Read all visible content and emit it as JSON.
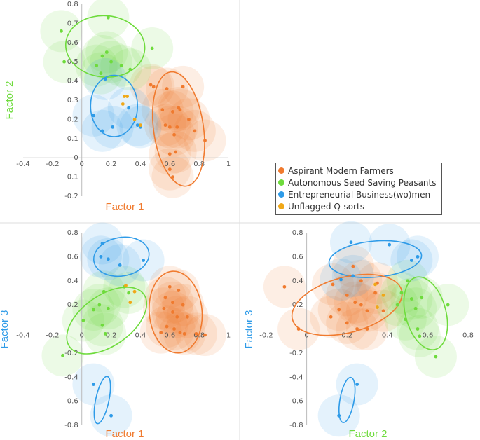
{
  "colors": {
    "orange": "#F07A2E",
    "green": "#6EDB3C",
    "blue": "#2E9BE8",
    "yellow": "#F0A818",
    "orange_axis": "#F07A2E",
    "green_axis": "#6EDB3C",
    "blue_axis": "#2E9BE8",
    "grid": "#DDDDDD",
    "axis": "#BBBBBB"
  },
  "legend": {
    "items": [
      {
        "label": "Aspirant Modern Farmers",
        "color": "#F07A2E"
      },
      {
        "label": "Autonomous Seed Saving Peasants",
        "color": "#6EDB3C"
      },
      {
        "label": "Entrepreneurial Business(wo)men",
        "color": "#2E9BE8"
      },
      {
        "label": "Unflagged Q-sorts",
        "color": "#F0A818"
      }
    ]
  },
  "chart_data": [
    {
      "type": "scatter",
      "id": "f1f2",
      "xlabel": "Factor 1",
      "ylabel": "Factor 2",
      "xlabel_color": "#F07A2E",
      "ylabel_color": "#6EDB3C",
      "xlim": [
        -0.4,
        1.0
      ],
      "ylim": [
        -0.2,
        0.8
      ],
      "xticks": [
        "-0.4",
        "-0.2",
        "0",
        "0.2",
        "0.4",
        "0.6",
        "0.8",
        "1"
      ],
      "yticks": [
        "-0.2",
        "-0.1",
        "0",
        "0.1",
        "0.2",
        "0.3",
        "0.4",
        "0.5",
        "0.6",
        "0.7",
        "0.8"
      ],
      "series": [
        {
          "name": "Aspirant Modern Farmers",
          "color": "#F07A2E",
          "points": [
            [
              0.47,
              0.38
            ],
            [
              0.49,
              0.37
            ],
            [
              0.58,
              0.36
            ],
            [
              0.69,
              0.37
            ],
            [
              0.55,
              0.25
            ],
            [
              0.62,
              0.24
            ],
            [
              0.66,
              0.26
            ],
            [
              0.67,
              0.25
            ],
            [
              0.73,
              0.2
            ],
            [
              0.57,
              0.17
            ],
            [
              0.6,
              0.16
            ],
            [
              0.63,
              0.12
            ],
            [
              0.77,
              0.14
            ],
            [
              0.84,
              0.09
            ],
            [
              0.6,
              0.02
            ],
            [
              0.64,
              0.03
            ],
            [
              0.6,
              -0.06
            ],
            [
              0.62,
              -0.1
            ],
            [
              0.65,
              0.16
            ]
          ]
        },
        {
          "name": "Autonomous Seed Saving Peasants",
          "color": "#6EDB3C",
          "points": [
            [
              -0.14,
              0.66
            ],
            [
              0.18,
              0.73
            ],
            [
              -0.12,
              0.5
            ],
            [
              0.17,
              0.55
            ],
            [
              0.14,
              0.53
            ],
            [
              0.2,
              0.5
            ],
            [
              0.27,
              0.48
            ],
            [
              0.1,
              0.48
            ],
            [
              0.13,
              0.44
            ],
            [
              0.33,
              0.46
            ],
            [
              0.48,
              0.57
            ]
          ]
        },
        {
          "name": "Entrepreneurial Business(wo)men",
          "color": "#2E9BE8",
          "points": [
            [
              0.16,
              0.41
            ],
            [
              0.08,
              0.22
            ],
            [
              0.21,
              0.16
            ],
            [
              0.14,
              0.14
            ],
            [
              0.32,
              0.26
            ],
            [
              0.4,
              0.16
            ],
            [
              0.38,
              0.17
            ]
          ]
        },
        {
          "name": "Unflagged Q-sorts",
          "color": "#F0A818",
          "points": [
            [
              0.29,
              0.32
            ],
            [
              0.31,
              0.32
            ],
            [
              0.28,
              0.28
            ],
            [
              0.36,
              0.2
            ],
            [
              0.4,
              0.17
            ]
          ]
        }
      ],
      "ellipses": [
        {
          "color": "#6EDB3C",
          "cx": 0.16,
          "cy": 0.58,
          "rx": 0.27,
          "ry": 0.16,
          "angle": 5
        },
        {
          "color": "#F07A2E",
          "cx": 0.66,
          "cy": 0.15,
          "rx": 0.17,
          "ry": 0.3,
          "angle": -8
        },
        {
          "color": "#2E9BE8",
          "cx": 0.22,
          "cy": 0.27,
          "rx": 0.16,
          "ry": 0.16,
          "angle": 0
        }
      ]
    },
    {
      "type": "scatter",
      "id": "f1f3",
      "xlabel": "Factor 1",
      "ylabel": "Factor 3",
      "xlabel_color": "#F07A2E",
      "ylabel_color": "#2E9BE8",
      "xlim": [
        -0.4,
        1.0
      ],
      "ylim": [
        -0.8,
        0.8
      ],
      "xticks": [
        "-0.4",
        "-0.2",
        "0",
        "0.2",
        "0.4",
        "0.6",
        "0.8",
        "1"
      ],
      "yticks": [
        "-0.8",
        "-0.6",
        "-0.4",
        "-0.2",
        "0",
        "0.2",
        "0.4",
        "0.6",
        "0.8"
      ],
      "series": [
        {
          "name": "Aspirant Modern Farmers",
          "color": "#F07A2E",
          "points": [
            [
              0.6,
              0.35
            ],
            [
              0.66,
              0.32
            ],
            [
              0.57,
              0.26
            ],
            [
              0.62,
              0.22
            ],
            [
              0.69,
              0.2
            ],
            [
              0.56,
              0.17
            ],
            [
              0.62,
              0.14
            ],
            [
              0.65,
              0.1
            ],
            [
              0.72,
              0.1
            ],
            [
              0.58,
              0.02
            ],
            [
              0.63,
              0.0
            ],
            [
              0.67,
              -0.03
            ],
            [
              0.7,
              -0.04
            ],
            [
              0.78,
              -0.04
            ],
            [
              0.84,
              -0.05
            ],
            [
              0.54,
              -0.03
            ]
          ]
        },
        {
          "name": "Autonomous Seed Saving Peasants",
          "color": "#6EDB3C",
          "points": [
            [
              0.15,
              0.31
            ],
            [
              0.29,
              0.35
            ],
            [
              0.12,
              0.2
            ],
            [
              0.18,
              0.17
            ],
            [
              0.08,
              0.16
            ],
            [
              0.32,
              0.3
            ],
            [
              0.01,
              0.07
            ],
            [
              0.14,
              0.03
            ],
            [
              -0.13,
              -0.22
            ],
            [
              0.16,
              -0.04
            ]
          ]
        },
        {
          "name": "Entrepreneurial Business(wo)men",
          "color": "#2E9BE8",
          "points": [
            [
              0.14,
              0.71
            ],
            [
              0.13,
              0.6
            ],
            [
              0.18,
              0.58
            ],
            [
              0.26,
              0.53
            ],
            [
              0.42,
              0.57
            ],
            [
              0.08,
              -0.46
            ],
            [
              0.2,
              -0.72
            ]
          ]
        },
        {
          "name": "Unflagged Q-sorts",
          "color": "#F0A818",
          "points": [
            [
              0.3,
              0.36
            ],
            [
              0.33,
              0.22
            ],
            [
              0.36,
              0.31
            ]
          ]
        }
      ],
      "ellipses": [
        {
          "color": "#2E9BE8",
          "cx": 0.27,
          "cy": 0.6,
          "rx": 0.19,
          "ry": 0.16,
          "angle": -10
        },
        {
          "color": "#6EDB3C",
          "cx": 0.17,
          "cy": 0.07,
          "rx": 0.31,
          "ry": 0.21,
          "angle": -35
        },
        {
          "color": "#F07A2E",
          "cx": 0.64,
          "cy": 0.14,
          "rx": 0.18,
          "ry": 0.34,
          "angle": -5
        },
        {
          "color": "#2E9BE8",
          "cx": 0.14,
          "cy": -0.59,
          "rx": 0.045,
          "ry": 0.2,
          "angle": 12
        }
      ]
    },
    {
      "type": "scatter",
      "id": "f2f3",
      "xlabel": "Factor 2",
      "ylabel": "Factor 3",
      "xlabel_color": "#6EDB3C",
      "ylabel_color": "#2E9BE8",
      "xlim": [
        -0.2,
        0.8
      ],
      "ylim": [
        -0.8,
        0.8
      ],
      "xticks": [
        "-0.2",
        "0",
        "0.2",
        "0.4",
        "0.6",
        "0.8"
      ],
      "yticks": [
        "-0.8",
        "-0.6",
        "-0.4",
        "-0.2",
        "0",
        "0.2",
        "0.4",
        "0.6",
        "0.8"
      ],
      "series": [
        {
          "name": "Aspirant Modern Farmers",
          "color": "#F07A2E",
          "points": [
            [
              -0.11,
              0.35
            ],
            [
              0.23,
              0.52
            ],
            [
              0.13,
              0.37
            ],
            [
              0.27,
              0.4
            ],
            [
              0.35,
              0.38
            ],
            [
              0.2,
              0.28
            ],
            [
              0.34,
              0.3
            ],
            [
              0.24,
              0.22
            ],
            [
              0.16,
              0.16
            ],
            [
              0.27,
              0.2
            ],
            [
              0.12,
              0.1
            ],
            [
              0.2,
              0.05
            ],
            [
              0.3,
              0.15
            ],
            [
              0.3,
              0.0
            ],
            [
              0.25,
              0.0
            ],
            [
              -0.04,
              0.0
            ],
            [
              0.38,
              0.15
            ]
          ]
        },
        {
          "name": "Autonomous Seed Saving Peasants",
          "color": "#6EDB3C",
          "points": [
            [
              0.5,
              0.4
            ],
            [
              0.47,
              0.3
            ],
            [
              0.52,
              0.25
            ],
            [
              0.57,
              0.26
            ],
            [
              0.45,
              0.2
            ],
            [
              0.54,
              0.17
            ],
            [
              0.7,
              0.2
            ],
            [
              0.49,
              0.08
            ],
            [
              0.55,
              0.0
            ],
            [
              0.56,
              -0.06
            ],
            [
              0.64,
              -0.23
            ]
          ]
        },
        {
          "name": "Entrepreneurial Business(wo)men",
          "color": "#2E9BE8",
          "points": [
            [
              0.22,
              0.72
            ],
            [
              0.41,
              0.7
            ],
            [
              0.55,
              0.6
            ],
            [
              0.52,
              0.57
            ],
            [
              0.17,
              0.41
            ],
            [
              0.23,
              0.44
            ],
            [
              0.25,
              -0.46
            ],
            [
              0.16,
              -0.72
            ]
          ]
        },
        {
          "name": "Unflagged Q-sorts",
          "color": "#F0A818",
          "points": [
            [
              0.34,
              0.37
            ],
            [
              0.38,
              0.28
            ],
            [
              0.35,
              0.18
            ]
          ]
        }
      ],
      "ellipses": [
        {
          "color": "#2E9BE8",
          "cx": 0.34,
          "cy": 0.58,
          "rx": 0.23,
          "ry": 0.15,
          "angle": -5
        },
        {
          "color": "#F07A2E",
          "cx": 0.2,
          "cy": 0.2,
          "rx": 0.28,
          "ry": 0.23,
          "angle": -15
        },
        {
          "color": "#6EDB3C",
          "cx": 0.59,
          "cy": 0.13,
          "rx": 0.1,
          "ry": 0.31,
          "angle": -15
        },
        {
          "color": "#2E9BE8",
          "cx": 0.2,
          "cy": -0.59,
          "rx": 0.035,
          "ry": 0.19,
          "angle": 10
        }
      ]
    }
  ]
}
